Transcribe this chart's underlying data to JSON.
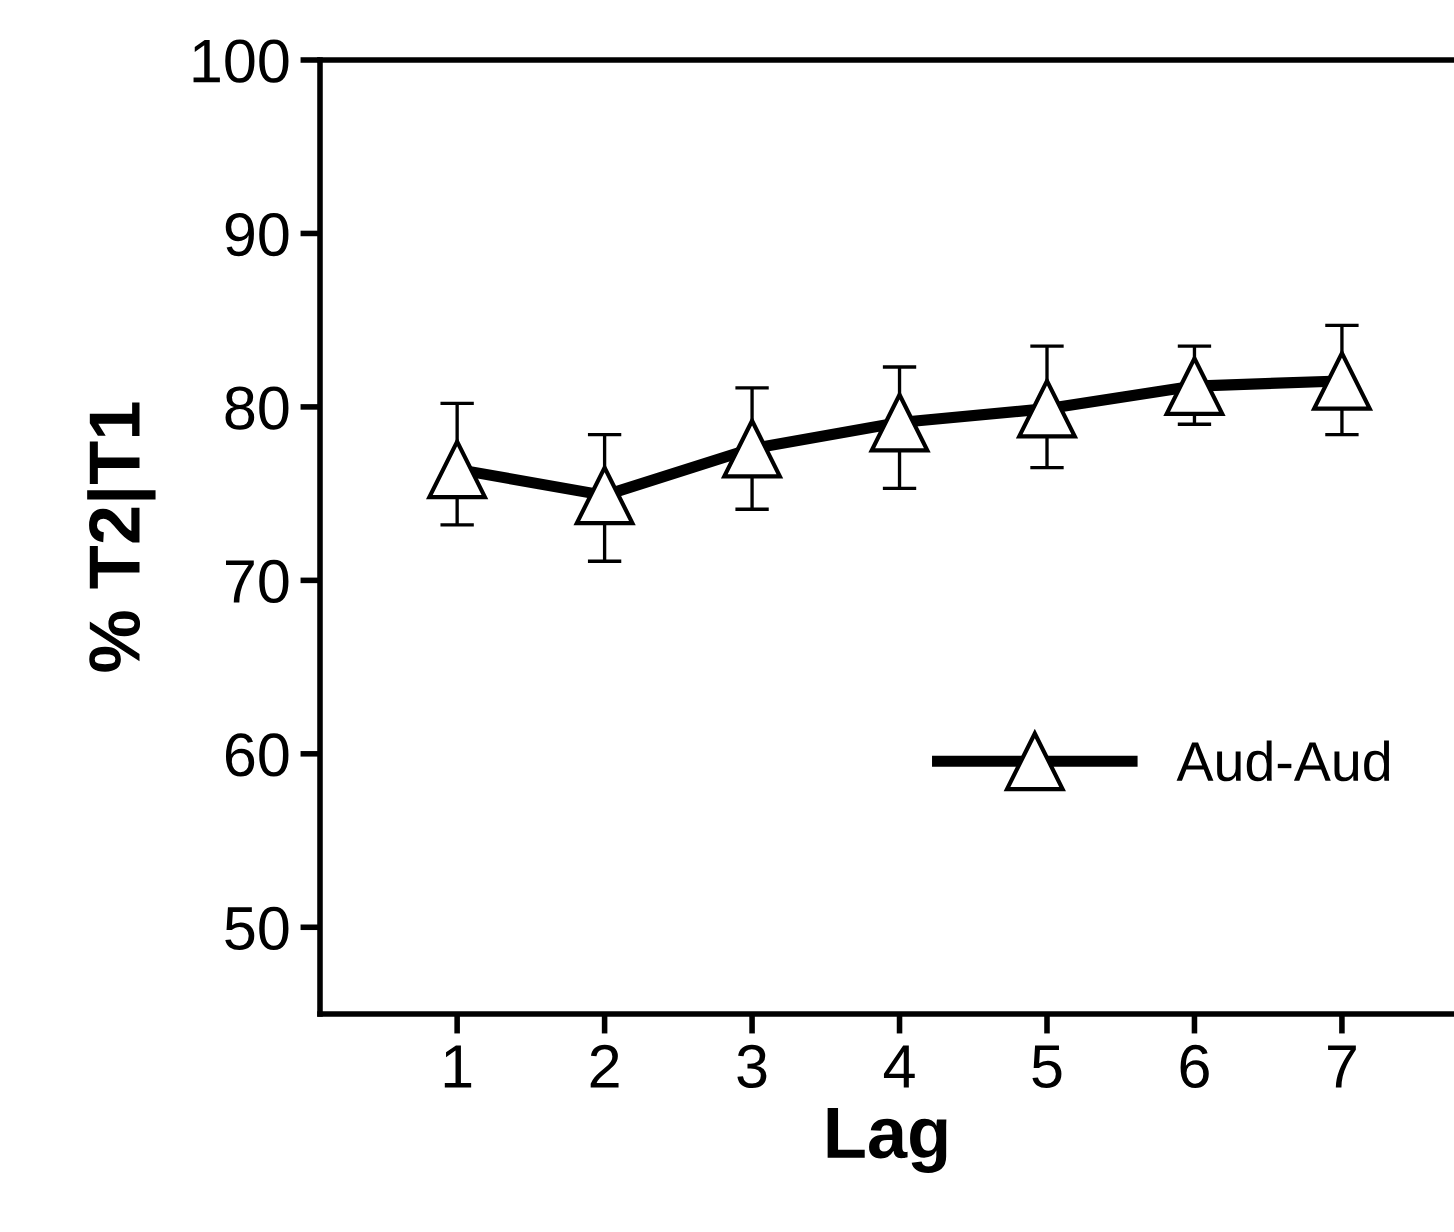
{
  "chart_data": {
    "type": "line",
    "xlabel": "Lag",
    "ylabel": "% T2|T1",
    "x": [
      1,
      2,
      3,
      4,
      5,
      6,
      7
    ],
    "series": [
      {
        "name": "Aud-Aud",
        "color": "#000000",
        "values": [
          76.4,
          74.9,
          77.6,
          79.1,
          79.9,
          81.2,
          81.5
        ],
        "errors": [
          [
            73.2,
            80.2
          ],
          [
            71.1,
            78.4
          ],
          [
            74.1,
            81.1
          ],
          [
            75.3,
            82.3
          ],
          [
            76.5,
            83.5
          ],
          [
            79.0,
            83.5
          ],
          [
            78.4,
            84.7
          ]
        ]
      }
    ],
    "xlim": [
      0.07,
      7.76
    ],
    "xticks": [
      1,
      2,
      3,
      4,
      5,
      6,
      7
    ],
    "ylim": [
      45,
      100
    ],
    "yticks": [
      50,
      60,
      70,
      80,
      90,
      100
    ],
    "marker": "triangle",
    "line_style": "solid",
    "legend": "bottom right",
    "grid": false
  }
}
